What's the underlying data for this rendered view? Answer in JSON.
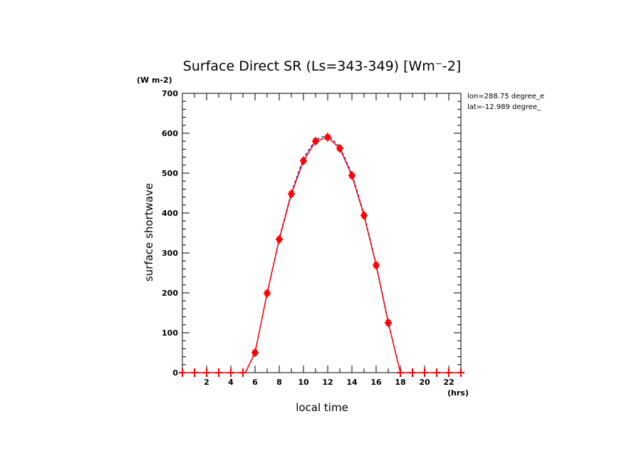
{
  "chart_data": {
    "type": "line",
    "title": "Surface Direct SR (Ls=343-349) [Wm⁻-2]",
    "y_unit": "(W m-2)",
    "x_unit": "(hrs)",
    "xlabel": "local time",
    "ylabel": "surface shortwave",
    "xlim": [
      0,
      23
    ],
    "ylim": [
      0,
      700
    ],
    "x_ticks": [
      2,
      4,
      6,
      8,
      10,
      12,
      14,
      16,
      18,
      20,
      22
    ],
    "y_ticks": [
      0,
      100,
      200,
      300,
      400,
      500,
      600,
      700
    ],
    "grid": false,
    "info_lines": [
      "lon=288.75 degree_e",
      "lat=-12.989 degree_"
    ],
    "series": [
      {
        "color": "#0000cc",
        "style": "dashed",
        "x": [
          0,
          1,
          2,
          3,
          4,
          5,
          5.2,
          6,
          7,
          8,
          9,
          10,
          11,
          12,
          13,
          14,
          15,
          16,
          17,
          18,
          18.1,
          19,
          20,
          21,
          22,
          23
        ],
        "values": [
          0,
          0,
          0,
          0,
          0,
          0,
          0,
          52,
          200,
          337,
          452,
          537,
          584,
          596,
          566,
          498,
          398,
          272,
          128,
          0,
          0,
          0,
          0,
          0,
          0,
          0
        ]
      },
      {
        "color": "#ff0000",
        "style": "solid",
        "marker": "plus",
        "x": [
          0,
          1,
          2,
          3,
          4,
          5,
          5.2,
          6,
          7,
          8,
          9,
          10,
          11,
          12,
          13,
          14,
          15,
          16,
          17,
          18,
          18.1,
          19,
          20,
          21,
          22,
          23
        ],
        "values": [
          0,
          0,
          0,
          0,
          0,
          0,
          0,
          50,
          199,
          334,
          448,
          531,
          580,
          590,
          562,
          494,
          394,
          269,
          125,
          0,
          0,
          0,
          0,
          0,
          0,
          0
        ]
      }
    ]
  }
}
